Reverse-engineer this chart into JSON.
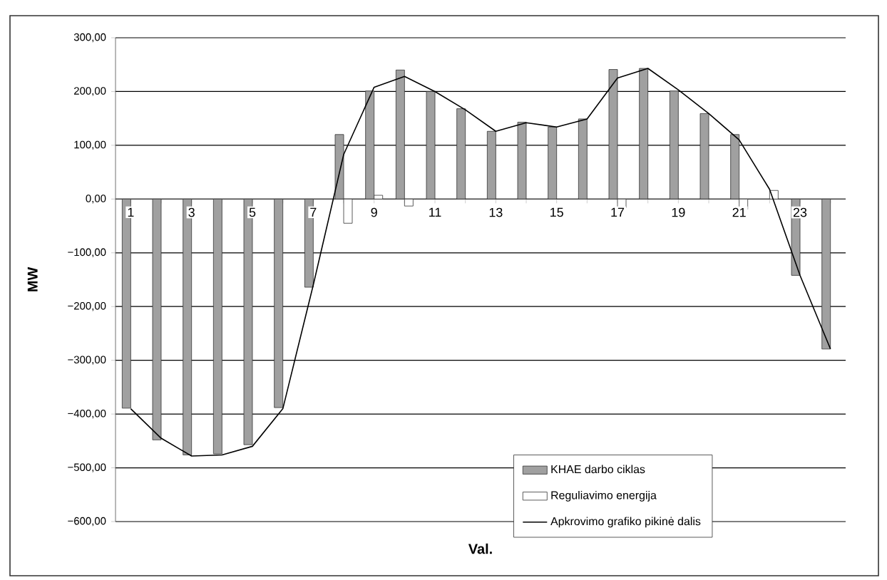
{
  "chart_data": {
    "type": "bar",
    "xlabel": "Val.",
    "ylabel": "MW",
    "categories": [
      "1",
      null,
      "3",
      null,
      "5",
      null,
      "7",
      null,
      "9",
      null,
      "11",
      null,
      "13",
      null,
      "15",
      null,
      "17",
      null,
      "19",
      null,
      "21",
      null,
      "23",
      null
    ],
    "series": [
      {
        "name": "KHAE darbo ciklas",
        "color": "#a0a0a0",
        "values": [
          -389,
          -448,
          -476,
          -474,
          -457,
          -388,
          -164,
          120,
          201,
          240,
          200,
          168,
          126,
          143,
          134,
          149,
          241,
          243,
          201,
          159,
          120,
          null,
          -142,
          -279
        ]
      },
      {
        "name": "Reguliavimo energija",
        "color": "#ffffff",
        "values": [
          null,
          null,
          null,
          null,
          null,
          null,
          null,
          -45,
          7,
          -13,
          null,
          null,
          null,
          null,
          null,
          null,
          -16,
          null,
          null,
          null,
          -19,
          16,
          null,
          null
        ]
      },
      {
        "name": "Apkrovimo grafiko pikinė dalis",
        "type": "line",
        "color": "#000000",
        "values": [
          -390,
          -445,
          -478,
          -476,
          -460,
          -390,
          -160,
          83,
          208,
          228,
          200,
          166,
          126,
          142,
          134,
          149,
          225,
          243,
          203,
          159,
          110,
          18,
          -142,
          -279
        ]
      }
    ],
    "ylim": [
      -600,
      300
    ],
    "yticks": [
      {
        "value": 300,
        "label": "300,00"
      },
      {
        "value": 200,
        "label": "200,00"
      },
      {
        "value": 100,
        "label": "100,00"
      },
      {
        "value": 0,
        "label": "0,00"
      },
      {
        "value": -100,
        "label": "−100,00"
      },
      {
        "value": -200,
        "label": "−200,00"
      },
      {
        "value": -300,
        "label": "−300,00"
      },
      {
        "value": -400,
        "label": "−400,00"
      },
      {
        "value": -500,
        "label": "−500,00"
      },
      {
        "value": -600,
        "label": "−600,00"
      }
    ],
    "grid": "y",
    "legend": "bottom right",
    "marker": "none",
    "line_style": "solid"
  }
}
